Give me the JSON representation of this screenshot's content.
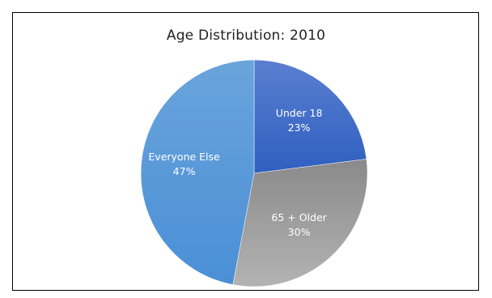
{
  "chart_data": {
    "type": "pie",
    "title": "Age Distribution: 2010",
    "slices": [
      {
        "label": "Under 18",
        "value": 23,
        "value_label": "23%",
        "color": "#3566c4"
      },
      {
        "label": "65 + Older",
        "value": 30,
        "value_label": "30%",
        "color": "#a6a6a6"
      },
      {
        "label": "Everyone Else",
        "value": 47,
        "value_label": "47%",
        "color": "#5b9bd5"
      }
    ],
    "start_angle": "top, clockwise",
    "legend": "none"
  }
}
